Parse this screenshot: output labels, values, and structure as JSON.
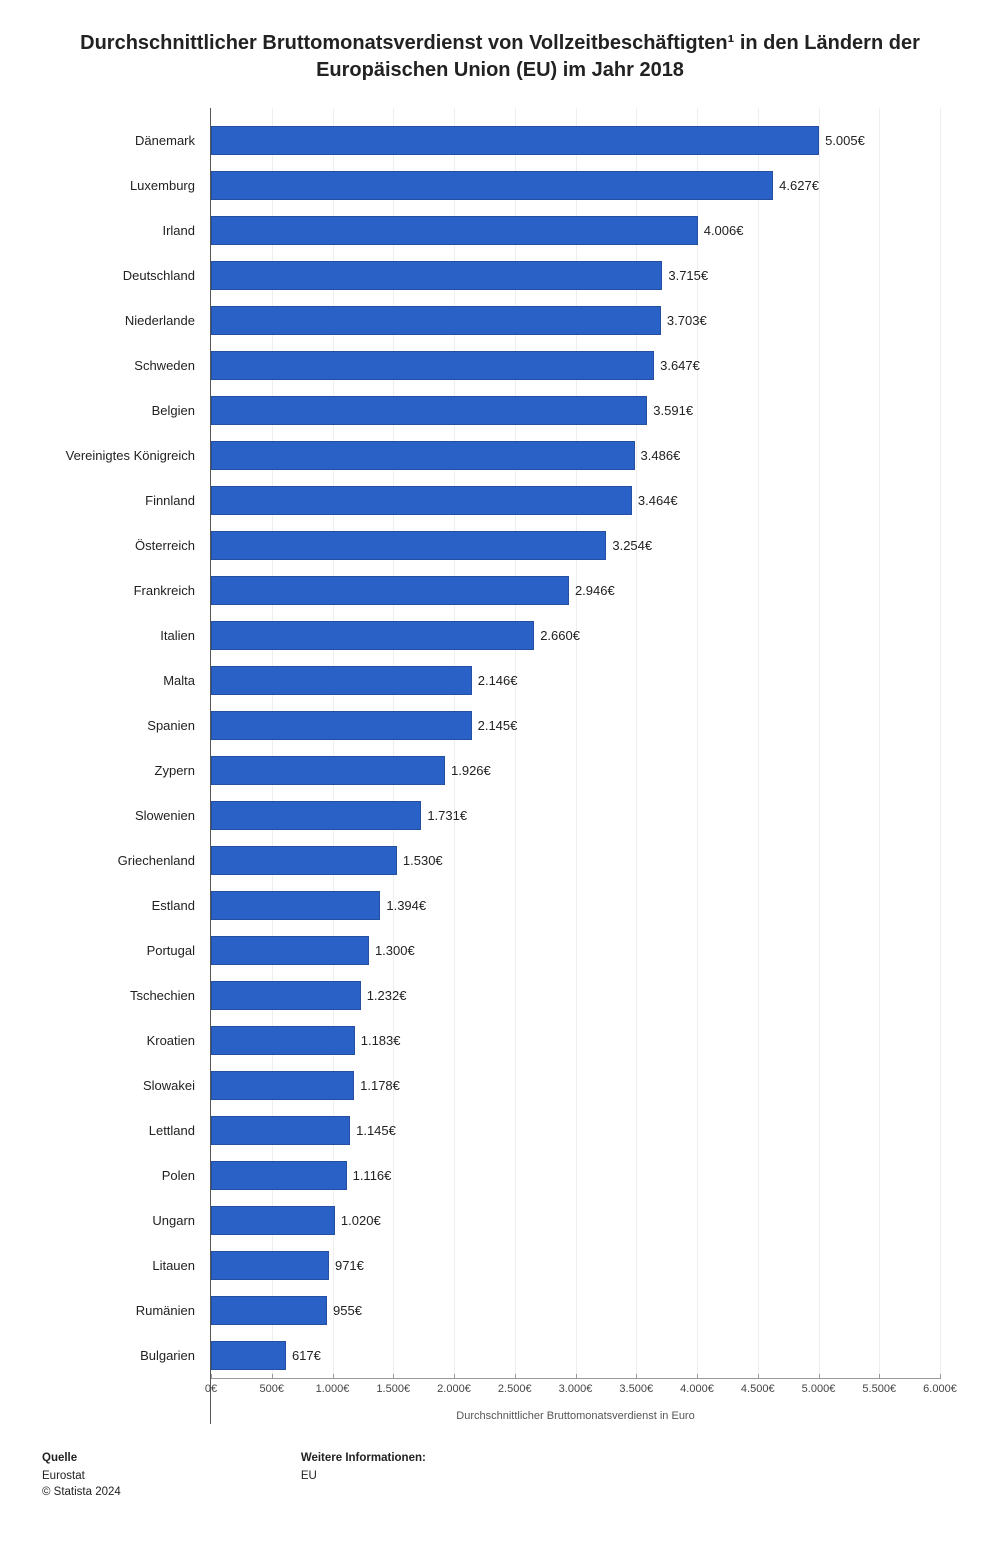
{
  "title": "Durchschnittlicher Bruttomonatsverdienst von Vollzeitbeschäftigten¹ in den Ländern der Europäischen Union (EU) im Jahr 2018",
  "chart": {
    "type": "bar-horizontal",
    "bar_color": "#2a61c6",
    "bar_border_color": "#254fa0",
    "background_color": "#ffffff",
    "grid_color": "#eeeeee",
    "axis_color": "#555555",
    "label_font_size": 13,
    "tick_font_size": 11,
    "xlim": [
      0,
      6000
    ],
    "xtick_step": 500,
    "xticks": [
      {
        "v": 0,
        "label": "0€"
      },
      {
        "v": 500,
        "label": "500€"
      },
      {
        "v": 1000,
        "label": "1.000€"
      },
      {
        "v": 1500,
        "label": "1.500€"
      },
      {
        "v": 2000,
        "label": "2.000€"
      },
      {
        "v": 2500,
        "label": "2.500€"
      },
      {
        "v": 3000,
        "label": "3.000€"
      },
      {
        "v": 3500,
        "label": "3.500€"
      },
      {
        "v": 4000,
        "label": "4.000€"
      },
      {
        "v": 4500,
        "label": "4.500€"
      },
      {
        "v": 5000,
        "label": "5.000€"
      },
      {
        "v": 5500,
        "label": "5.500€"
      },
      {
        "v": 6000,
        "label": "6.000€"
      }
    ],
    "xlabel": "Durchschnittlicher Bruttomonatsverdienst in Euro",
    "rows": [
      {
        "label": "Dänemark",
        "value": 5005,
        "display": "5.005€"
      },
      {
        "label": "Luxemburg",
        "value": 4627,
        "display": "4.627€"
      },
      {
        "label": "Irland",
        "value": 4006,
        "display": "4.006€"
      },
      {
        "label": "Deutschland",
        "value": 3715,
        "display": "3.715€"
      },
      {
        "label": "Niederlande",
        "value": 3703,
        "display": "3.703€"
      },
      {
        "label": "Schweden",
        "value": 3647,
        "display": "3.647€"
      },
      {
        "label": "Belgien",
        "value": 3591,
        "display": "3.591€"
      },
      {
        "label": "Vereinigtes Königreich",
        "value": 3486,
        "display": "3.486€"
      },
      {
        "label": "Finnland",
        "value": 3464,
        "display": "3.464€"
      },
      {
        "label": "Österreich",
        "value": 3254,
        "display": "3.254€"
      },
      {
        "label": "Frankreich",
        "value": 2946,
        "display": "2.946€"
      },
      {
        "label": "Italien",
        "value": 2660,
        "display": "2.660€"
      },
      {
        "label": "Malta",
        "value": 2146,
        "display": "2.146€"
      },
      {
        "label": "Spanien",
        "value": 2145,
        "display": "2.145€"
      },
      {
        "label": "Zypern",
        "value": 1926,
        "display": "1.926€"
      },
      {
        "label": "Slowenien",
        "value": 1731,
        "display": "1.731€"
      },
      {
        "label": "Griechenland",
        "value": 1530,
        "display": "1.530€"
      },
      {
        "label": "Estland",
        "value": 1394,
        "display": "1.394€"
      },
      {
        "label": "Portugal",
        "value": 1300,
        "display": "1.300€"
      },
      {
        "label": "Tschechien",
        "value": 1232,
        "display": "1.232€"
      },
      {
        "label": "Kroatien",
        "value": 1183,
        "display": "1.183€"
      },
      {
        "label": "Slowakei",
        "value": 1178,
        "display": "1.178€"
      },
      {
        "label": "Lettland",
        "value": 1145,
        "display": "1.145€"
      },
      {
        "label": "Polen",
        "value": 1116,
        "display": "1.116€"
      },
      {
        "label": "Ungarn",
        "value": 1020,
        "display": "1.020€"
      },
      {
        "label": "Litauen",
        "value": 971,
        "display": "971€"
      },
      {
        "label": "Rumänien",
        "value": 955,
        "display": "955€"
      },
      {
        "label": "Bulgarien",
        "value": 617,
        "display": "617€"
      }
    ]
  },
  "footer": {
    "source_heading": "Quelle",
    "source_line1": "Eurostat",
    "source_line2": "© Statista 2024",
    "info_heading": "Weitere Informationen:",
    "info_line1": "EU"
  }
}
